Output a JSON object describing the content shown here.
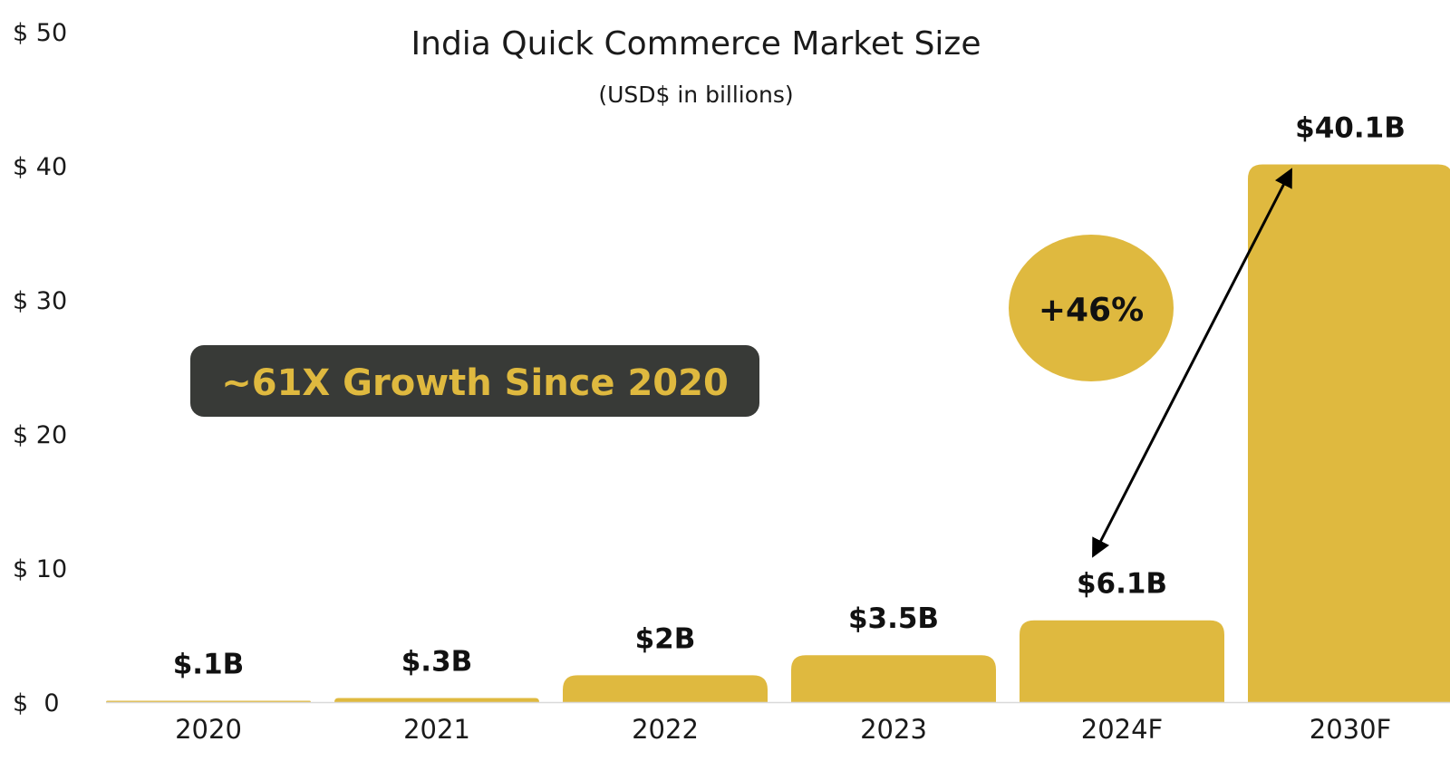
{
  "colors": {
    "bar": "#DFB93F",
    "badge_bg": "#383A37",
    "badge_text": "#DFB93F",
    "bubble": "#DFB93F",
    "baseline": "#D9D9D9",
    "arrow": "#000000"
  },
  "annotations": {
    "growth_badge": "~61X Growth Since 2020",
    "cagr_bubble": "+46%"
  },
  "chart_data": {
    "type": "bar",
    "title": "India Quick Commerce Market Size",
    "subtitle": "(USD$ in billions)",
    "xlabel": "",
    "ylabel": "",
    "categories": [
      "2020",
      "2021",
      "2022",
      "2023",
      "2024F",
      "2030F"
    ],
    "values": [
      0.1,
      0.3,
      2,
      3.5,
      6.1,
      40.1
    ],
    "data_labels": [
      "$.1B",
      "$.3B",
      "$2B",
      "$3.5B",
      "$6.1B",
      "$40.1B"
    ],
    "ylim": [
      0,
      50
    ],
    "yticks": [
      0,
      10,
      20,
      30,
      40,
      50
    ],
    "ytick_labels": [
      "$  0",
      "$ 10",
      "$ 20",
      "$ 30",
      "$ 40",
      "$ 50"
    ],
    "grid": false,
    "legend": "none"
  }
}
